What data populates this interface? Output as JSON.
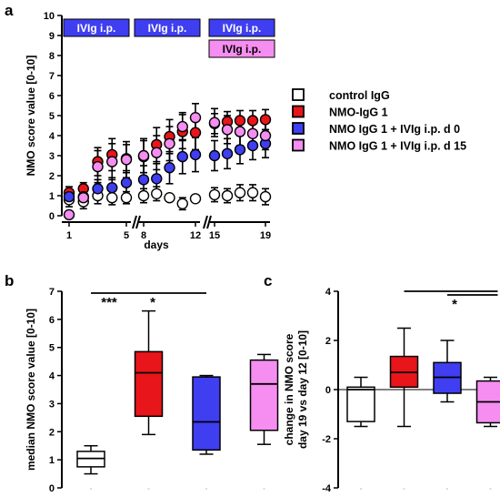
{
  "panel_labels": {
    "a": "a",
    "b": "b",
    "c": "c"
  },
  "colors": {
    "control": "#ffffff",
    "nmo": "#e8151b",
    "ivig_d0": "#3f3ef1",
    "ivig_d15": "#f58ef0",
    "ivig_box_blue": "#3f3ef1",
    "ivig_box_pink": "#f58ef0"
  },
  "treatment_boxes": [
    {
      "label": "IVIg i.p.",
      "color": "#3f3ef1"
    },
    {
      "label": "IVIg i.p.",
      "color": "#3f3ef1"
    },
    {
      "label": "IVIg i.p.",
      "color": "#3f3ef1"
    },
    {
      "label": "IVIg i.p.",
      "color": "#f58ef0"
    }
  ],
  "legend": [
    {
      "label": "control IgG",
      "color": "#ffffff"
    },
    {
      "label": "NMO-IgG 1",
      "color": "#e8151b"
    },
    {
      "label": "NMO IgG 1 + IVIg i.p. d 0",
      "color": "#3f3ef1"
    },
    {
      "label": "NMO IgG 1 + IVIg i.p. d 15",
      "color": "#f58ef0"
    }
  ],
  "chart_data": [
    {
      "id": "a",
      "type": "scatter",
      "title": "",
      "xlabel": "days",
      "ylabel": "NMO score value [0-10]",
      "ylim": [
        0,
        10
      ],
      "yticks": [
        "0",
        "1",
        "2",
        "3",
        "4",
        "5",
        "6",
        "7",
        "8",
        "9",
        "10"
      ],
      "xticks": [
        "1",
        "5",
        "8",
        "12",
        "15",
        "19"
      ],
      "x_segments": [
        [
          1,
          5
        ],
        [
          8,
          12
        ],
        [
          15,
          19
        ]
      ],
      "series": [
        {
          "name": "control IgG",
          "color": "#ffffff",
          "x": [
            1,
            2,
            3,
            4,
            5,
            8,
            9,
            10,
            11,
            12,
            15,
            16,
            17,
            18,
            19
          ],
          "y": [
            0.8,
            0.7,
            1.0,
            0.9,
            0.9,
            1.0,
            1.1,
            0.9,
            0.6,
            0.85,
            1.05,
            1.0,
            1.15,
            1.15,
            0.95
          ],
          "err": [
            0.35,
            0.35,
            0.4,
            0.35,
            0.3,
            0.35,
            0.35,
            0,
            0.3,
            0,
            0.35,
            0.35,
            0.4,
            0.4,
            0.4
          ]
        },
        {
          "name": "NMO-IgG 1",
          "color": "#e8151b",
          "x": [
            1,
            2,
            3,
            4,
            5,
            8,
            9,
            10,
            11,
            12,
            15,
            16,
            17,
            18,
            19
          ],
          "y": [
            1.15,
            1.35,
            2.7,
            3.05,
            2.85,
            2.95,
            3.55,
            3.95,
            4.2,
            4.15,
            4.6,
            4.7,
            4.75,
            4.75,
            4.8
          ],
          "err": [
            0.3,
            0.3,
            0.7,
            0.8,
            0.7,
            0.8,
            0.85,
            0.85,
            0.85,
            0.85,
            0.5,
            0.5,
            0.5,
            0.5,
            0.5
          ]
        },
        {
          "name": "NMO IgG 1 + IVIg i.p. d 0",
          "color": "#3f3ef1",
          "x": [
            1,
            2,
            3,
            4,
            5,
            8,
            9,
            10,
            11,
            12,
            15,
            16,
            17,
            18,
            19
          ],
          "y": [
            0.95,
            0.95,
            1.35,
            1.4,
            1.65,
            1.8,
            1.85,
            2.4,
            2.95,
            3.05,
            3.0,
            3.1,
            3.3,
            3.5,
            3.6
          ],
          "err": [
            0.3,
            0.35,
            0.45,
            0.5,
            0.6,
            0.7,
            0.75,
            0.8,
            0.85,
            0.85,
            0.75,
            0.75,
            0.7,
            0.7,
            0.7
          ]
        },
        {
          "name": "NMO IgG 1 + IVIg i.p. d 15",
          "color": "#f58ef0",
          "x": [
            1,
            2,
            3,
            4,
            5,
            8,
            9,
            10,
            11,
            12,
            15,
            16,
            17,
            18,
            19
          ],
          "y": [
            0.05,
            0.9,
            2.45,
            2.7,
            2.8,
            3.0,
            3.15,
            3.6,
            4.45,
            4.9,
            4.65,
            4.3,
            4.2,
            4.1,
            4.0
          ],
          "err": [
            0,
            0.3,
            0.8,
            0.9,
            0.9,
            0.85,
            0.85,
            0.85,
            0.7,
            0.7,
            0.7,
            0.7,
            0.7,
            0.7,
            0.7
          ]
        }
      ]
    },
    {
      "id": "b",
      "type": "box",
      "title": "",
      "xlabel": "",
      "ylabel": "median NMO score value [0-10]",
      "ylim": [
        0,
        7
      ],
      "yticks": [
        "0",
        "1",
        "2",
        "3",
        "4",
        "5",
        "6",
        "7"
      ],
      "boxes": [
        {
          "color": "#ffffff",
          "min": 0.5,
          "q1": 0.75,
          "median": 1.05,
          "q3": 1.3,
          "max": 1.5
        },
        {
          "color": "#e8151b",
          "min": 1.9,
          "q1": 2.55,
          "median": 4.1,
          "q3": 4.85,
          "max": 6.3
        },
        {
          "color": "#3f3ef1",
          "min": 1.2,
          "q1": 1.35,
          "median": 2.35,
          "q3": 3.95,
          "max": 4.0
        },
        {
          "color": "#f58ef0",
          "min": 1.55,
          "q1": 2.05,
          "median": 3.7,
          "q3": 4.55,
          "max": 4.75
        }
      ],
      "significance": [
        {
          "from": 0,
          "to": 1,
          "label": "***"
        },
        {
          "from": 1,
          "to": 2,
          "label": "*"
        }
      ]
    },
    {
      "id": "c",
      "type": "box",
      "title": "",
      "xlabel": "",
      "ylabel_lines": [
        "change in NMO score",
        "day 19 vs day 12 [0-10]"
      ],
      "ylim": [
        -4,
        4
      ],
      "yticks": [
        "-4",
        "-2",
        "0",
        "2",
        "4"
      ],
      "boxes": [
        {
          "color": "#ffffff",
          "min": -1.5,
          "q1": -1.3,
          "median": 0.0,
          "q3": 0.1,
          "max": 0.5
        },
        {
          "color": "#e8151b",
          "min": -1.5,
          "q1": 0.1,
          "median": 0.7,
          "q3": 1.35,
          "max": 2.5
        },
        {
          "color": "#3f3ef1",
          "min": -0.5,
          "q1": -0.15,
          "median": 0.5,
          "q3": 1.1,
          "max": 2.0
        },
        {
          "color": "#f58ef0",
          "min": -1.5,
          "q1": -1.35,
          "median": -0.5,
          "q3": 0.35,
          "max": 0.5
        }
      ],
      "significance": [
        {
          "from": 1,
          "to": 3,
          "label": ""
        },
        {
          "from": 2,
          "to": 3,
          "label": "*"
        }
      ]
    }
  ]
}
